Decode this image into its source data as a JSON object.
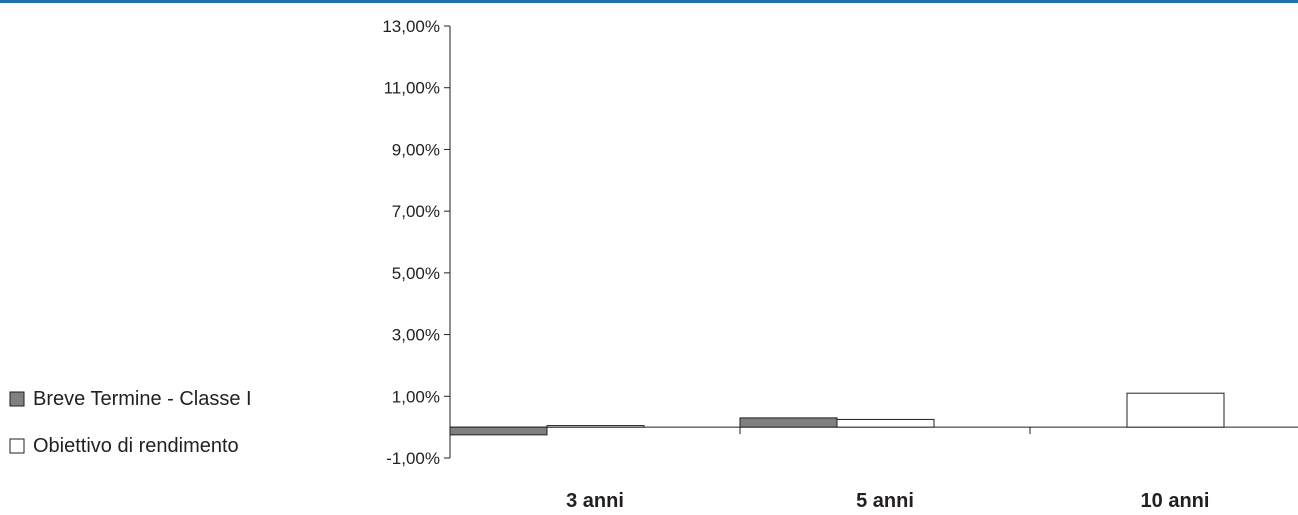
{
  "colors": {
    "top_rule": "#1f6fa8",
    "series_1_fill": "#808080",
    "series_2_fill": "#ffffff",
    "stroke": "#231f20"
  },
  "chart_data": {
    "type": "bar",
    "title": "",
    "xlabel": "",
    "ylabel": "",
    "categories": [
      "3 anni",
      "5 anni",
      "10 anni"
    ],
    "series": [
      {
        "name": "Breve Termine - Classe I",
        "values": [
          -0.25,
          0.3,
          null
        ]
      },
      {
        "name": "Obiettivo di rendimento",
        "values": [
          0.05,
          0.25,
          1.1
        ]
      }
    ],
    "ylim": [
      -1,
      13
    ],
    "yticks": [
      13,
      11,
      9,
      7,
      5,
      3,
      1,
      -1
    ],
    "ytick_labels": [
      "13,00%",
      "11,00%",
      "9,00%",
      "7,00%",
      "5,00%",
      "3,00%",
      "1,00%",
      "-1,00%"
    ],
    "legend": {
      "placement": "left",
      "items": [
        {
          "label": "Breve Termine - Classe I",
          "marker": "■"
        },
        {
          "label": "Obiettivo di rendimento",
          "marker": "□"
        }
      ]
    },
    "grid": false
  }
}
